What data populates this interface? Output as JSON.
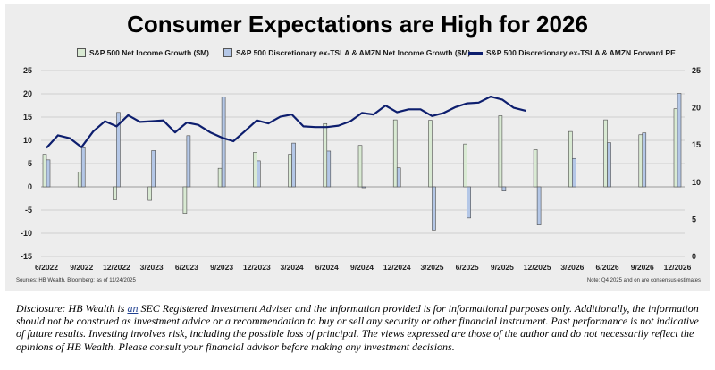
{
  "chart_data": {
    "type": "bar+line",
    "title": "Consumer Expectations are High for 2026",
    "categories": [
      "6/2022",
      "9/2022",
      "12/2022",
      "3/2023",
      "6/2023",
      "9/2023",
      "12/2023",
      "3/2024",
      "6/2024",
      "9/2024",
      "12/2024",
      "3/2025",
      "6/2025",
      "9/2025",
      "12/2025",
      "3/2026",
      "6/2026",
      "9/2026",
      "12/2026"
    ],
    "left_axis": {
      "ylim": [
        -15,
        25
      ],
      "ticks": [
        "25",
        "20",
        "15",
        "10",
        "5",
        "0",
        "-5",
        "-10",
        "-15"
      ],
      "tick_values": [
        25,
        20,
        15,
        10,
        5,
        0,
        -5,
        -10,
        -15
      ]
    },
    "right_axis": {
      "ylim": [
        0,
        25
      ],
      "ticks": [
        "25",
        "20",
        "15",
        "10",
        "5",
        "0"
      ],
      "tick_values": [
        25,
        20,
        15,
        10,
        5,
        0
      ]
    },
    "series": [
      {
        "name": "S&P 500 Net Income Growth ($M)",
        "type": "bar",
        "axis": "left",
        "color": "#d9ead3",
        "values": [
          7.0,
          3.2,
          -2.8,
          -2.9,
          -5.7,
          4.0,
          7.4,
          7.0,
          13.6,
          8.9,
          14.4,
          14.3,
          9.2,
          15.3,
          8.0,
          11.9,
          14.4,
          11.2,
          16.8
        ]
      },
      {
        "name": "S&P 500 Discretionary ex-TSLA & AMZN Net Income Growth ($M)",
        "type": "bar",
        "axis": "left",
        "color": "#b4c7e7",
        "values": [
          5.8,
          8.4,
          16.0,
          7.8,
          11.0,
          19.3,
          5.6,
          9.4,
          7.7,
          -0.2,
          4.1,
          -9.3,
          -6.7,
          -0.9,
          -8.2,
          6.1,
          9.5,
          11.6,
          20.1
        ]
      },
      {
        "name": "S&P 500 Discretionary ex-TSLA & AMZN Forward PE",
        "type": "line",
        "axis": "right",
        "color": "#0d1e6e",
        "x": [
          0,
          0.33,
          0.67,
          1,
          1.33,
          1.67,
          2,
          2.33,
          2.67,
          3,
          3.33,
          3.67,
          4,
          4.33,
          4.67,
          5,
          5.33,
          5.67,
          6,
          6.33,
          6.67,
          7,
          7.33,
          7.67,
          8,
          8.33,
          8.67,
          9,
          9.33,
          9.67,
          10,
          10.33,
          10.67,
          11,
          11.33,
          11.67,
          12,
          12.33,
          12.67,
          13,
          13.33,
          13.67
        ],
        "values": [
          14.6,
          16.3,
          15.9,
          14.7,
          16.8,
          18.2,
          17.5,
          19.0,
          18.1,
          18.2,
          18.3,
          16.7,
          18.0,
          17.7,
          16.7,
          16.0,
          15.5,
          16.9,
          18.3,
          17.9,
          18.8,
          19.1,
          17.5,
          17.4,
          17.4,
          17.6,
          18.2,
          19.3,
          19.1,
          20.3,
          19.4,
          19.8,
          19.8,
          18.9,
          19.3,
          20.1,
          20.6,
          20.7,
          21.5,
          21.1,
          20.0,
          19.6
        ]
      }
    ],
    "legend": [
      "S&P 500 Net Income Growth ($M)",
      "S&P 500 Discretionary ex-TSLA & AMZN Net Income Growth ($M)",
      "S&P 500 Discretionary ex-TSLA & AMZN Forward PE"
    ],
    "grid": true
  },
  "notes": {
    "source": "Sources: HB Wealth, Bloomberg; as of 11/24/2025",
    "estimates": "Note: Q4 2025 and on are consensus estimates"
  },
  "disclosure": {
    "part1": "Disclosure: HB Wealth is ",
    "an": "an",
    "part2": " SEC Registered Investment Adviser and the information provided is for informational purposes only. Additionally, the information should not be construed as investment advice or a recommendation to buy or sell any security or other financial instrument. Past performance is not indicative of future results. Investing involves risk, including the possible loss of principal. The views expressed are those of the author and do not necessarily reflect the opinions of HB Wealth. Please consult your financial advisor before making any investment decisions."
  },
  "colors": {
    "panel": "#ededed",
    "grid": "#d0d0d0",
    "line": "#0d1e6e"
  }
}
